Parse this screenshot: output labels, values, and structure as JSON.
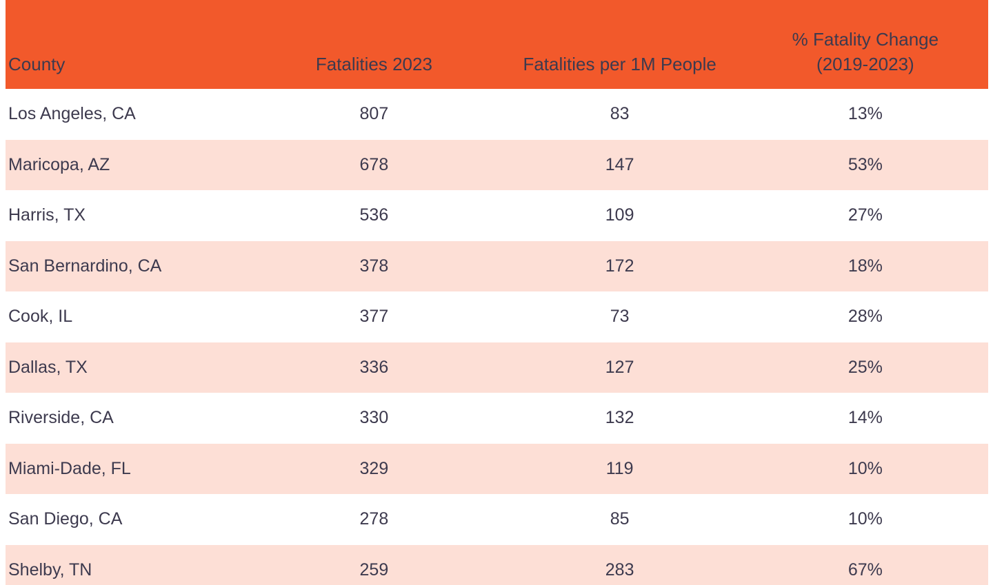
{
  "style": {
    "header_bg": "#F2592B",
    "row_bg": "#FFFFFF",
    "row_alt_bg": "#FDDFD6",
    "text_color": "#3D3A4E"
  },
  "chart_data": {
    "type": "table",
    "columns": [
      {
        "id": "county",
        "lines": [
          "County"
        ],
        "align": "left"
      },
      {
        "id": "fatalities-2023",
        "lines": [
          "Fatalities 2023"
        ],
        "align": "center"
      },
      {
        "id": "fatalities-per-1m-people",
        "lines": [
          "Fatalities per 1M People"
        ],
        "align": "center"
      },
      {
        "id": "pct-fatality-change-2019-2023",
        "lines": [
          "% Fatality Change",
          "(2019-2023)"
        ],
        "align": "center"
      }
    ],
    "rows": [
      [
        "Los Angeles, CA",
        "807",
        "83",
        "13%"
      ],
      [
        "Maricopa, AZ",
        "678",
        "147",
        "53%"
      ],
      [
        "Harris, TX",
        "536",
        "109",
        "27%"
      ],
      [
        "San Bernardino, CA",
        "378",
        "172",
        "18%"
      ],
      [
        "Cook, IL",
        "377",
        "73",
        "28%"
      ],
      [
        "Dallas, TX",
        "336",
        "127",
        "25%"
      ],
      [
        "Riverside, CA",
        "330",
        "132",
        "14%"
      ],
      [
        "Miami-Dade, FL",
        "329",
        "119",
        "10%"
      ],
      [
        "San Diego, CA",
        "278",
        "85",
        "10%"
      ],
      [
        "Shelby, TN",
        "259",
        "283",
        "67%"
      ]
    ]
  }
}
